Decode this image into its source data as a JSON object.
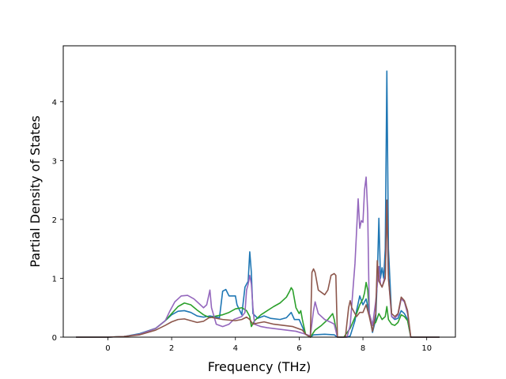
{
  "chart_data": {
    "type": "line",
    "title": "",
    "xlabel": "Frequency (THz)",
    "ylabel": "Partial Density of States",
    "xlim": [
      -1.4,
      10.9
    ],
    "ylim": [
      0,
      4.95
    ],
    "xticks": [
      0,
      2,
      4,
      6,
      8,
      10
    ],
    "yticks": [
      0,
      1,
      2,
      3,
      4
    ],
    "grid": false,
    "legend": "none",
    "series": [
      {
        "color": "#1f77b4",
        "points": [
          [
            -1.0,
            0.0
          ],
          [
            0.0,
            0.0
          ],
          [
            0.5,
            0.01
          ],
          [
            1.0,
            0.06
          ],
          [
            1.5,
            0.15
          ],
          [
            1.8,
            0.28
          ],
          [
            2.0,
            0.38
          ],
          [
            2.2,
            0.44
          ],
          [
            2.4,
            0.45
          ],
          [
            2.6,
            0.42
          ],
          [
            2.8,
            0.36
          ],
          [
            3.0,
            0.34
          ],
          [
            3.2,
            0.36
          ],
          [
            3.4,
            0.34
          ],
          [
            3.5,
            0.33
          ],
          [
            3.6,
            0.78
          ],
          [
            3.7,
            0.81
          ],
          [
            3.8,
            0.7
          ],
          [
            4.0,
            0.7
          ],
          [
            4.05,
            0.55
          ],
          [
            4.2,
            0.38
          ],
          [
            4.3,
            0.85
          ],
          [
            4.4,
            0.95
          ],
          [
            4.45,
            1.45
          ],
          [
            4.5,
            1.1
          ],
          [
            4.55,
            0.4
          ],
          [
            4.7,
            0.32
          ],
          [
            4.9,
            0.36
          ],
          [
            5.1,
            0.32
          ],
          [
            5.4,
            0.3
          ],
          [
            5.6,
            0.33
          ],
          [
            5.75,
            0.42
          ],
          [
            5.85,
            0.3
          ],
          [
            6.0,
            0.3
          ],
          [
            6.2,
            0.05
          ],
          [
            6.35,
            0.0
          ],
          [
            6.45,
            0.04
          ],
          [
            6.8,
            0.05
          ],
          [
            7.1,
            0.04
          ],
          [
            7.2,
            0.0
          ],
          [
            7.5,
            0.0
          ],
          [
            7.6,
            0.02
          ],
          [
            7.75,
            0.28
          ],
          [
            7.8,
            0.45
          ],
          [
            7.9,
            0.7
          ],
          [
            8.0,
            0.55
          ],
          [
            8.1,
            0.65
          ],
          [
            8.2,
            0.4
          ],
          [
            8.3,
            0.08
          ],
          [
            8.4,
            0.3
          ],
          [
            8.45,
            1.0
          ],
          [
            8.5,
            2.02
          ],
          [
            8.55,
            1.0
          ],
          [
            8.6,
            1.18
          ],
          [
            8.65,
            1.0
          ],
          [
            8.7,
            1.5
          ],
          [
            8.75,
            4.52
          ],
          [
            8.8,
            1.5
          ],
          [
            8.9,
            0.35
          ],
          [
            9.0,
            0.3
          ],
          [
            9.1,
            0.32
          ],
          [
            9.2,
            0.45
          ],
          [
            9.3,
            0.4
          ],
          [
            9.4,
            0.3
          ],
          [
            9.5,
            0.0
          ],
          [
            10.4,
            0.0
          ]
        ]
      },
      {
        "color": "#2ca02c",
        "points": [
          [
            -1.0,
            0.0
          ],
          [
            0.0,
            0.0
          ],
          [
            0.5,
            0.01
          ],
          [
            1.0,
            0.05
          ],
          [
            1.5,
            0.15
          ],
          [
            1.8,
            0.28
          ],
          [
            2.0,
            0.4
          ],
          [
            2.2,
            0.52
          ],
          [
            2.4,
            0.58
          ],
          [
            2.6,
            0.55
          ],
          [
            2.8,
            0.46
          ],
          [
            3.0,
            0.38
          ],
          [
            3.2,
            0.33
          ],
          [
            3.4,
            0.36
          ],
          [
            3.6,
            0.38
          ],
          [
            3.8,
            0.42
          ],
          [
            4.0,
            0.48
          ],
          [
            4.2,
            0.5
          ],
          [
            4.35,
            0.45
          ],
          [
            4.45,
            0.35
          ],
          [
            4.5,
            0.18
          ],
          [
            4.6,
            0.28
          ],
          [
            4.8,
            0.38
          ],
          [
            5.0,
            0.45
          ],
          [
            5.2,
            0.52
          ],
          [
            5.4,
            0.58
          ],
          [
            5.6,
            0.68
          ],
          [
            5.7,
            0.78
          ],
          [
            5.75,
            0.84
          ],
          [
            5.8,
            0.8
          ],
          [
            5.9,
            0.5
          ],
          [
            6.0,
            0.4
          ],
          [
            6.05,
            0.45
          ],
          [
            6.1,
            0.3
          ],
          [
            6.2,
            0.05
          ],
          [
            6.35,
            0.0
          ],
          [
            6.5,
            0.12
          ],
          [
            6.7,
            0.2
          ],
          [
            6.9,
            0.3
          ],
          [
            7.05,
            0.4
          ],
          [
            7.1,
            0.3
          ],
          [
            7.2,
            0.0
          ],
          [
            7.4,
            0.0
          ],
          [
            7.6,
            0.15
          ],
          [
            7.8,
            0.4
          ],
          [
            7.9,
            0.55
          ],
          [
            8.0,
            0.65
          ],
          [
            8.05,
            0.75
          ],
          [
            8.1,
            0.93
          ],
          [
            8.15,
            0.8
          ],
          [
            8.2,
            0.4
          ],
          [
            8.3,
            0.2
          ],
          [
            8.4,
            0.25
          ],
          [
            8.5,
            0.4
          ],
          [
            8.6,
            0.3
          ],
          [
            8.7,
            0.35
          ],
          [
            8.75,
            0.52
          ],
          [
            8.8,
            0.3
          ],
          [
            8.9,
            0.22
          ],
          [
            9.0,
            0.2
          ],
          [
            9.1,
            0.25
          ],
          [
            9.2,
            0.38
          ],
          [
            9.3,
            0.35
          ],
          [
            9.4,
            0.28
          ],
          [
            9.5,
            0.0
          ],
          [
            10.4,
            0.0
          ]
        ]
      },
      {
        "color": "#9467bd",
        "points": [
          [
            -1.0,
            0.0
          ],
          [
            0.0,
            0.0
          ],
          [
            0.5,
            0.01
          ],
          [
            1.0,
            0.05
          ],
          [
            1.5,
            0.15
          ],
          [
            1.8,
            0.28
          ],
          [
            1.95,
            0.45
          ],
          [
            2.1,
            0.6
          ],
          [
            2.3,
            0.7
          ],
          [
            2.5,
            0.71
          ],
          [
            2.7,
            0.65
          ],
          [
            2.9,
            0.55
          ],
          [
            3.0,
            0.5
          ],
          [
            3.1,
            0.55
          ],
          [
            3.2,
            0.8
          ],
          [
            3.25,
            0.5
          ],
          [
            3.4,
            0.22
          ],
          [
            3.6,
            0.18
          ],
          [
            3.8,
            0.22
          ],
          [
            3.95,
            0.3
          ],
          [
            4.1,
            0.33
          ],
          [
            4.2,
            0.35
          ],
          [
            4.3,
            0.42
          ],
          [
            4.35,
            0.8
          ],
          [
            4.4,
            0.9
          ],
          [
            4.45,
            1.05
          ],
          [
            4.5,
            0.9
          ],
          [
            4.55,
            0.5
          ],
          [
            4.6,
            0.22
          ],
          [
            4.8,
            0.18
          ],
          [
            5.0,
            0.16
          ],
          [
            5.3,
            0.14
          ],
          [
            5.6,
            0.12
          ],
          [
            5.9,
            0.1
          ],
          [
            6.2,
            0.05
          ],
          [
            6.35,
            0.02
          ],
          [
            6.45,
            0.45
          ],
          [
            6.5,
            0.6
          ],
          [
            6.6,
            0.4
          ],
          [
            6.8,
            0.3
          ],
          [
            7.0,
            0.25
          ],
          [
            7.1,
            0.22
          ],
          [
            7.2,
            0.0
          ],
          [
            7.5,
            0.0
          ],
          [
            7.6,
            0.2
          ],
          [
            7.75,
            1.25
          ],
          [
            7.85,
            2.35
          ],
          [
            7.9,
            1.85
          ],
          [
            7.95,
            1.98
          ],
          [
            8.0,
            1.95
          ],
          [
            8.05,
            2.5
          ],
          [
            8.1,
            2.72
          ],
          [
            8.15,
            2.1
          ],
          [
            8.2,
            0.4
          ],
          [
            8.3,
            0.2
          ],
          [
            8.4,
            0.6
          ],
          [
            8.45,
            0.9
          ],
          [
            8.5,
            1.2
          ],
          [
            8.55,
            0.9
          ],
          [
            8.6,
            0.85
          ],
          [
            8.7,
            1.05
          ],
          [
            8.75,
            2.3
          ],
          [
            8.8,
            1.0
          ],
          [
            8.9,
            0.35
          ],
          [
            9.0,
            0.32
          ],
          [
            9.1,
            0.38
          ],
          [
            9.2,
            0.65
          ],
          [
            9.3,
            0.6
          ],
          [
            9.4,
            0.4
          ],
          [
            9.5,
            0.0
          ],
          [
            10.4,
            0.0
          ]
        ]
      },
      {
        "color": "#8c564b",
        "points": [
          [
            -1.0,
            0.0
          ],
          [
            0.0,
            0.0
          ],
          [
            0.5,
            0.01
          ],
          [
            1.0,
            0.04
          ],
          [
            1.5,
            0.12
          ],
          [
            1.8,
            0.2
          ],
          [
            2.0,
            0.26
          ],
          [
            2.2,
            0.3
          ],
          [
            2.4,
            0.31
          ],
          [
            2.6,
            0.28
          ],
          [
            2.8,
            0.25
          ],
          [
            3.0,
            0.27
          ],
          [
            3.2,
            0.34
          ],
          [
            3.4,
            0.32
          ],
          [
            3.6,
            0.3
          ],
          [
            3.8,
            0.29
          ],
          [
            4.0,
            0.28
          ],
          [
            4.2,
            0.3
          ],
          [
            4.35,
            0.34
          ],
          [
            4.45,
            0.3
          ],
          [
            4.55,
            0.22
          ],
          [
            4.7,
            0.24
          ],
          [
            4.9,
            0.26
          ],
          [
            5.2,
            0.22
          ],
          [
            5.5,
            0.2
          ],
          [
            5.8,
            0.18
          ],
          [
            6.1,
            0.12
          ],
          [
            6.2,
            0.05
          ],
          [
            6.35,
            0.0
          ],
          [
            6.4,
            1.1
          ],
          [
            6.45,
            1.16
          ],
          [
            6.5,
            1.1
          ],
          [
            6.6,
            0.8
          ],
          [
            6.8,
            0.72
          ],
          [
            6.9,
            0.8
          ],
          [
            7.0,
            1.05
          ],
          [
            7.1,
            1.08
          ],
          [
            7.15,
            1.05
          ],
          [
            7.2,
            0.0
          ],
          [
            7.45,
            0.0
          ],
          [
            7.55,
            0.5
          ],
          [
            7.6,
            0.62
          ],
          [
            7.65,
            0.5
          ],
          [
            7.8,
            0.35
          ],
          [
            7.9,
            0.42
          ],
          [
            8.0,
            0.42
          ],
          [
            8.1,
            0.55
          ],
          [
            8.2,
            0.35
          ],
          [
            8.3,
            0.1
          ],
          [
            8.4,
            0.4
          ],
          [
            8.45,
            1.3
          ],
          [
            8.5,
            0.95
          ],
          [
            8.6,
            0.85
          ],
          [
            8.7,
            1.0
          ],
          [
            8.75,
            2.33
          ],
          [
            8.8,
            1.0
          ],
          [
            8.9,
            0.4
          ],
          [
            9.0,
            0.35
          ],
          [
            9.1,
            0.4
          ],
          [
            9.2,
            0.68
          ],
          [
            9.3,
            0.62
          ],
          [
            9.4,
            0.45
          ],
          [
            9.5,
            0.0
          ],
          [
            10.4,
            0.0
          ]
        ]
      }
    ]
  }
}
